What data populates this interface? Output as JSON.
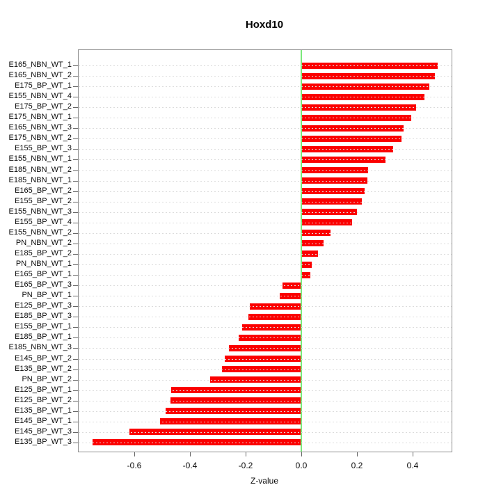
{
  "colors": {
    "bar": "#fb0000",
    "zero_line": "#7be87b",
    "grid": "#dcdcdc",
    "box_border": "#8c8c8c",
    "tick": "#666666",
    "text": "#0a0a0a"
  },
  "chart_data": {
    "type": "bar",
    "orientation": "horizontal",
    "title": "Hoxd10",
    "xlabel": "Z-value",
    "ylabel": "",
    "xlim": [
      -0.8,
      0.54
    ],
    "grid": true,
    "grid_style": "dotted",
    "zero_line": true,
    "legend": "none",
    "x_ticks": [
      -0.6,
      -0.4,
      -0.2,
      0.0,
      0.2,
      0.4
    ],
    "x_tick_labels": [
      "-0.6",
      "-0.4",
      "-0.2",
      "0.0",
      "0.2",
      "0.4"
    ],
    "categories": [
      "E165_NBN_WT_1",
      "E165_NBN_WT_2",
      "E175_BP_WT_1",
      "E155_NBN_WT_4",
      "E175_BP_WT_2",
      "E175_NBN_WT_1",
      "E165_NBN_WT_3",
      "E175_NBN_WT_2",
      "E155_BP_WT_3",
      "E155_NBN_WT_1",
      "E185_NBN_WT_2",
      "E185_NBN_WT_1",
      "E165_BP_WT_2",
      "E155_BP_WT_2",
      "E155_NBN_WT_3",
      "E155_BP_WT_4",
      "E155_NBN_WT_2",
      "PN_NBN_WT_2",
      "E185_BP_WT_2",
      "PN_NBN_WT_1",
      "E165_BP_WT_1",
      "E165_BP_WT_3",
      "PN_BP_WT_1",
      "E125_BP_WT_3",
      "E185_BP_WT_3",
      "E155_BP_WT_1",
      "E185_BP_WT_1",
      "E185_NBN_WT_3",
      "E145_BP_WT_2",
      "E135_BP_WT_2",
      "PN_BP_WT_2",
      "E125_BP_WT_1",
      "E125_BP_WT_2",
      "E135_BP_WT_1",
      "E145_BP_WT_1",
      "E145_BP_WT_3",
      "E135_BP_WT_3"
    ],
    "values": [
      0.49,
      0.48,
      0.46,
      0.442,
      0.412,
      0.394,
      0.367,
      0.359,
      0.33,
      0.302,
      0.241,
      0.237,
      0.228,
      0.218,
      0.201,
      0.183,
      0.105,
      0.081,
      0.061,
      0.037,
      0.033,
      -0.068,
      -0.078,
      -0.185,
      -0.19,
      -0.213,
      -0.226,
      -0.259,
      -0.275,
      -0.284,
      -0.328,
      -0.467,
      -0.469,
      -0.488,
      -0.507,
      -0.617,
      -0.75
    ]
  }
}
